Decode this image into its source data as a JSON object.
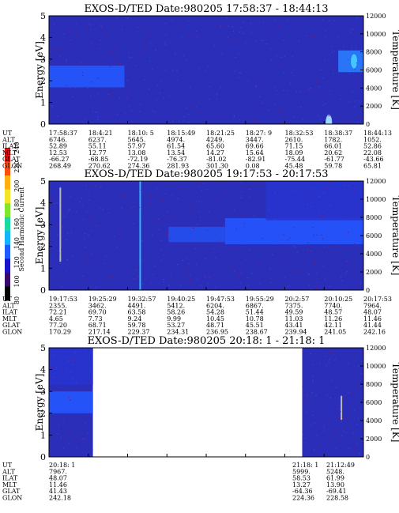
{
  "colorbar": {
    "label": "Second Harmonic Current",
    "ticks": [
      "80",
      "100",
      "120",
      "140",
      "160",
      "180",
      "200",
      "220",
      "240"
    ],
    "colors": [
      "#000000",
      "#3a0a6a",
      "#1a14c8",
      "#1f5cff",
      "#12b4ff",
      "#18d8a4",
      "#7fe62b",
      "#f2e52a",
      "#ffb010",
      "#ff4d10",
      "#e60a0a"
    ]
  },
  "chart_data": [
    {
      "type": "heatmap",
      "title": "EXOS-D/TED   Date:980205   17:58:37 - 18:44:13",
      "ylabel": "Energy [eV]",
      "ylabel_right": "Temperature [K]",
      "ylim": [
        0,
        5
      ],
      "yticks": [
        "0",
        "1",
        "2",
        "3",
        "4",
        "5"
      ],
      "ylim_right": [
        0,
        12000
      ],
      "yticks_right": [
        "0",
        "2000",
        "4000",
        "6000",
        "8000",
        "10000",
        "12000"
      ],
      "data_columns": [
        0,
        1
      ],
      "background": "#2a2eb8",
      "features": [
        {
          "kind": "band",
          "x0": 0.0,
          "x1": 0.24,
          "y0": 1.7,
          "y1": 2.7,
          "color": "#2458ff"
        },
        {
          "kind": "band",
          "x0": 0.92,
          "x1": 1.0,
          "y0": 2.4,
          "y1": 3.4,
          "color": "#2a7cff"
        },
        {
          "kind": "spot",
          "x": 0.97,
          "y": 2.9,
          "color": "#44c8ff"
        },
        {
          "kind": "spot",
          "x": 0.89,
          "y": 0.1,
          "color": "#9ad8ff"
        }
      ],
      "table": [
        {
          "label": "UT",
          "values": [
            "17:58:37",
            "18:4:21",
            "18:10: 5",
            "18:15:49",
            "18:21:25",
            "18:27: 9",
            "18:32:53",
            "18:38:37",
            "18:44:13"
          ]
        },
        {
          "label": "ALT",
          "values": [
            "6746.",
            "6237.",
            "5645.",
            "4974.",
            "4249.",
            "3447.",
            "2610.",
            "1782.",
            "1052."
          ]
        },
        {
          "label": "ILAT",
          "values": [
            "52.89",
            "55.11",
            "57.97",
            "61.54",
            "65.60",
            "69.66",
            "71.15",
            "66.01",
            "52.86"
          ]
        },
        {
          "label": "MLT",
          "values": [
            "12.53",
            "12.77",
            "13.08",
            "13.54",
            "14.27",
            "15.64",
            "18.09",
            "20.62",
            "22.08"
          ]
        },
        {
          "label": "GLAT",
          "values": [
            "-66.27",
            "-68.85",
            "-72.19",
            "-76.37",
            "-81.02",
            "-82.91",
            "-75.44",
            "-61.77",
            "-43.66"
          ]
        },
        {
          "label": "GLON",
          "values": [
            "268.49",
            "270.62",
            "274.36",
            "281.93",
            "301.30",
            "0.08",
            "45.48",
            "59.78",
            "65.81"
          ]
        }
      ]
    },
    {
      "type": "heatmap",
      "title": "EXOS-D/TED   Date:980205   19:17:53 - 20:17:53",
      "ylabel": "Energy [eV]",
      "ylabel_right": "Temperature [K]",
      "ylim": [
        0,
        5
      ],
      "yticks": [
        "0",
        "1",
        "2",
        "3",
        "4",
        "5"
      ],
      "ylim_right": [
        0,
        12000
      ],
      "yticks_right": [
        "0",
        "2000",
        "4000",
        "6000",
        "8000",
        "10000",
        "12000"
      ],
      "data_columns": [
        0,
        1
      ],
      "background": "#2a2eb8",
      "features": [
        {
          "kind": "band",
          "x0": 0.38,
          "x1": 0.56,
          "y0": 2.2,
          "y1": 2.9,
          "color": "#2450f0"
        },
        {
          "kind": "band",
          "x0": 0.56,
          "x1": 1.0,
          "y0": 2.1,
          "y1": 3.3,
          "color": "#2456ff"
        },
        {
          "kind": "band",
          "x0": 0.69,
          "x1": 1.0,
          "y0": 3.2,
          "y1": 5.0,
          "color": "#2834d0"
        },
        {
          "kind": "line",
          "x": 0.29,
          "y0": 0.0,
          "y1": 5.0,
          "color": "#36b4ff"
        },
        {
          "kind": "line",
          "x": 0.036,
          "y0": 1.3,
          "y1": 4.7,
          "color": "#b8b8b8"
        }
      ],
      "table": [
        {
          "label": "UT",
          "values": [
            "19:17:53",
            "19:25:29",
            "19:32:57",
            "19:40:25",
            "19:47:53",
            "19:55:29",
            "20:2:57",
            "20:10:25",
            "20:17:53"
          ]
        },
        {
          "label": "ALT",
          "values": [
            "2355.",
            "3462.",
            "4491.",
            "5412.",
            "6204.",
            "6867.",
            "7375.",
            "7740.",
            "7964."
          ]
        },
        {
          "label": "ILAT",
          "values": [
            "72.21",
            "69.70",
            "63.58",
            "58.26",
            "54.28",
            "51.44",
            "49.59",
            "48.57",
            "48.07"
          ]
        },
        {
          "label": "MLT",
          "values": [
            "4.65",
            "7.73",
            "9.24",
            "9.99",
            "10.45",
            "10.78",
            "11.03",
            "11.26",
            "11.46"
          ]
        },
        {
          "label": "GLAT",
          "values": [
            "77.20",
            "68.71",
            "59.78",
            "53.27",
            "48.71",
            "45.51",
            "43.41",
            "42.11",
            "41.44"
          ]
        },
        {
          "label": "GLON",
          "values": [
            "170.29",
            "217.14",
            "229.37",
            "234.31",
            "236.95",
            "238.67",
            "239.94",
            "241.05",
            "242.16"
          ]
        }
      ]
    },
    {
      "type": "heatmap",
      "title": "EXOS-D/TED   Date:980205   20:18: 1 - 21:18: 1",
      "ylabel": "Energy [eV]",
      "ylabel_right": "Temperature [K]",
      "ylim": [
        0,
        5
      ],
      "yticks": [
        "0",
        "1",
        "2",
        "3",
        "4",
        "5"
      ],
      "ylim_right": [
        0,
        12000
      ],
      "yticks_right": [
        "0",
        "2000",
        "4000",
        "6000",
        "8000",
        "10000",
        "12000"
      ],
      "data_columns": [
        0,
        8
      ],
      "background": "#2a2eb8",
      "features": [
        {
          "kind": "band",
          "x0": 0.0,
          "x1": 0.16,
          "y0": 2.0,
          "y1": 3.0,
          "color": "#2458ff"
        },
        {
          "kind": "band",
          "x0": 0.0,
          "x1": 0.16,
          "y0": 3.3,
          "y1": 5.0,
          "color": "#2834d0"
        },
        {
          "kind": "line",
          "x": 0.93,
          "y0": 1.7,
          "y1": 2.8,
          "color": "#b8b8b8"
        }
      ],
      "table": [
        {
          "label": "UT",
          "values": [
            "20:18: 1",
            "",
            "",
            "",
            "",
            "",
            "",
            "21:18: 1",
            "21:12:49"
          ]
        },
        {
          "label": "ALT",
          "values": [
            "7967.",
            "",
            "",
            "",
            "",
            "",
            "",
            "5999.",
            "5248."
          ]
        },
        {
          "label": "ILAT",
          "values": [
            "48.07",
            "",
            "",
            "",
            "",
            "",
            "",
            "58.53",
            "61.99"
          ]
        },
        {
          "label": "MLT",
          "values": [
            "11.46",
            "",
            "",
            "",
            "",
            "",
            "",
            "13.27",
            "13.90"
          ]
        },
        {
          "label": "GLAT",
          "values": [
            "41.43",
            "",
            "",
            "",
            "",
            "",
            "",
            "-64.36",
            "-69.41"
          ]
        },
        {
          "label": "GLON",
          "values": [
            "242.18",
            "",
            "",
            "",
            "",
            "",
            "",
            "224.36",
            "228.58"
          ]
        }
      ]
    }
  ]
}
